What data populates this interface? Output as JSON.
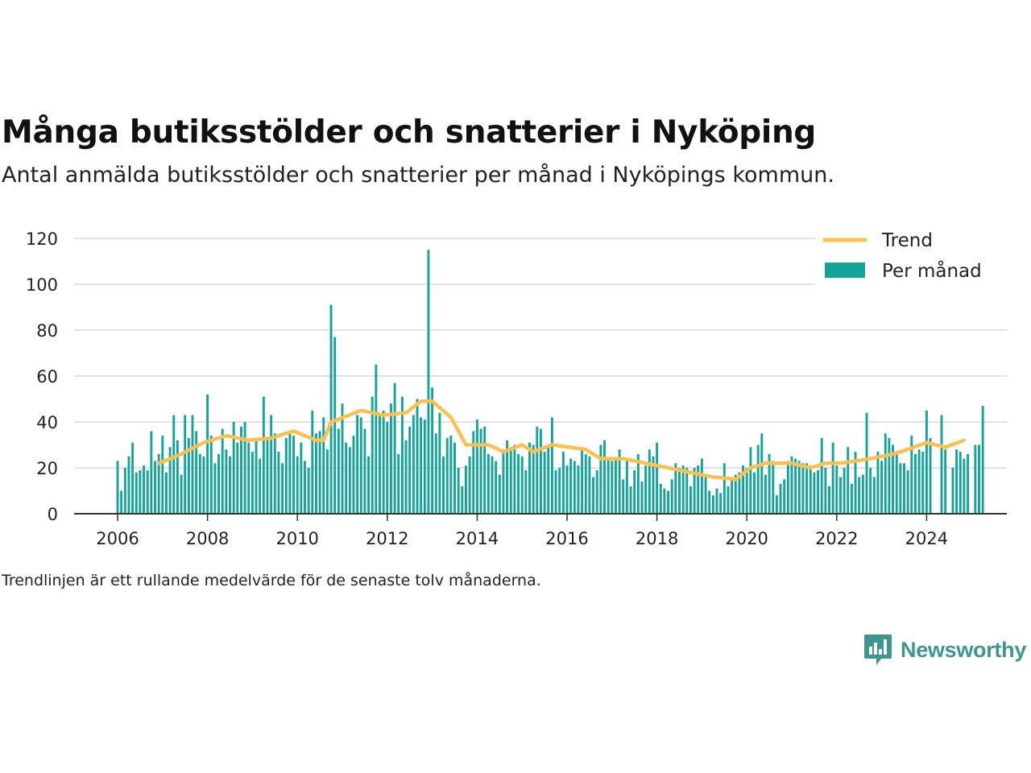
{
  "header": {
    "title": "Många butiksstölder och snatterier i Nyköping",
    "subtitle": "Antal anmälda butiksstölder och snatterier per månad i Nyköpings kommun."
  },
  "footer": {
    "note": "Trendlinjen är ett rullande medelvärde för de senaste tolv månaderna.",
    "brand": "Newsworthy"
  },
  "colors": {
    "bars": "#12a39a",
    "trend": "#fbc04d",
    "grid": "#d9d9d9",
    "axis": "#333333",
    "brand": "#3f9691"
  },
  "chart_data": {
    "type": "bar",
    "x_axis": {
      "type": "date",
      "ticks": [
        "2006",
        "2008",
        "2010",
        "2012",
        "2014",
        "2016",
        "2018",
        "2020",
        "2022",
        "2024"
      ]
    },
    "y_axis": {
      "ylim": [
        0,
        120
      ],
      "ticks": [
        "0",
        "20",
        "40",
        "60",
        "80",
        "100",
        "120"
      ]
    },
    "grid": true,
    "legend": {
      "placement": "top-right",
      "entries": [
        "Trend",
        "Per månad"
      ]
    },
    "start_month": "2006-01",
    "series": [
      {
        "name": "Per månad",
        "type": "bar",
        "values": [
          23,
          10,
          20,
          25,
          31,
          18,
          19,
          21,
          19,
          36,
          23,
          26,
          34,
          18,
          29,
          43,
          32,
          17,
          43,
          33,
          43,
          36,
          26,
          25,
          52,
          34,
          22,
          26,
          37,
          28,
          25,
          40,
          31,
          38,
          40,
          31,
          27,
          32,
          24,
          51,
          33,
          43,
          35,
          27,
          22,
          33,
          36,
          34,
          25,
          31,
          23,
          20,
          45,
          35,
          36,
          42,
          28,
          91,
          77,
          37,
          48,
          31,
          29,
          34,
          43,
          42,
          37,
          25,
          51,
          65,
          43,
          45,
          40,
          48,
          57,
          26,
          51,
          32,
          38,
          43,
          50,
          42,
          41,
          115,
          55,
          35,
          44,
          25,
          33,
          34,
          31,
          20,
          12,
          21,
          25,
          36,
          41,
          37,
          38,
          26,
          25,
          23,
          17,
          28,
          32,
          29,
          30,
          26,
          25,
          19,
          31,
          30,
          38,
          37,
          27,
          30,
          42,
          19,
          20,
          27,
          21,
          24,
          23,
          21,
          29,
          26,
          25,
          16,
          19,
          30,
          32,
          24,
          23,
          24,
          28,
          15,
          24,
          12,
          19,
          26,
          14,
          21,
          28,
          25,
          31,
          13,
          11,
          10,
          15,
          22,
          20,
          21,
          20,
          12,
          20,
          21,
          24,
          16,
          10,
          8,
          11,
          9,
          22,
          12,
          16,
          17,
          18,
          21,
          20,
          29,
          18,
          30,
          35,
          17,
          26,
          23,
          8,
          13,
          15,
          23,
          25,
          24,
          23,
          22,
          22,
          21,
          18,
          19,
          33,
          20,
          12,
          31,
          21,
          16,
          20,
          29,
          13,
          27,
          16,
          17,
          44,
          20,
          16,
          27,
          23,
          35,
          33,
          30,
          27,
          22,
          22,
          19,
          34,
          26,
          28,
          27,
          45,
          33,
          null,
          null,
          43,
          28,
          null,
          20,
          28,
          27,
          24,
          26,
          null,
          30,
          30,
          47
        ]
      },
      {
        "name": "Trend",
        "type": "line",
        "points": [
          [
            "2006-12",
            22
          ],
          [
            "2007-06",
            26
          ],
          [
            "2007-12",
            31
          ],
          [
            "2008-06",
            34
          ],
          [
            "2008-12",
            32
          ],
          [
            "2009-06",
            33
          ],
          [
            "2009-12",
            36
          ],
          [
            "2010-06",
            32
          ],
          [
            "2010-08",
            32
          ],
          [
            "2010-10",
            40
          ],
          [
            "2011-06",
            45
          ],
          [
            "2011-12",
            43
          ],
          [
            "2012-06",
            44
          ],
          [
            "2012-10",
            49
          ],
          [
            "2013-01",
            49
          ],
          [
            "2013-06",
            42
          ],
          [
            "2013-10",
            30
          ],
          [
            "2014-04",
            30
          ],
          [
            "2014-08",
            27
          ],
          [
            "2015-01",
            30
          ],
          [
            "2015-04",
            27
          ],
          [
            "2015-09",
            30
          ],
          [
            "2016-06",
            28
          ],
          [
            "2016-10",
            24
          ],
          [
            "2017-04",
            24
          ],
          [
            "2017-10",
            22
          ],
          [
            "2018-04",
            20
          ],
          [
            "2018-10",
            18
          ],
          [
            "2019-04",
            16
          ],
          [
            "2019-10",
            15
          ],
          [
            "2020-02",
            20
          ],
          [
            "2020-06",
            22
          ],
          [
            "2021-01",
            22
          ],
          [
            "2021-06",
            20
          ],
          [
            "2021-10",
            22
          ],
          [
            "2022-02",
            22
          ],
          [
            "2022-10",
            24
          ],
          [
            "2023-04",
            26
          ],
          [
            "2023-08",
            28
          ],
          [
            "2024-01",
            31
          ],
          [
            "2024-06",
            29
          ],
          [
            "2024-11",
            32
          ]
        ]
      }
    ]
  }
}
